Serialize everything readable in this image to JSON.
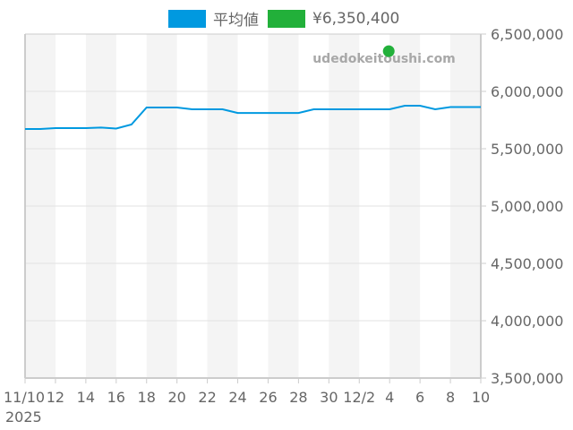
{
  "legend": [
    {
      "label": "平均値",
      "color": "#0099e0"
    },
    {
      "label": "¥6,350,400",
      "color": "#22b03a"
    }
  ],
  "watermark": "udedokeitoushi.com",
  "chart_data": {
    "type": "line",
    "title": "",
    "xlabel": "",
    "ylabel": "",
    "ylim": [
      3500000,
      6500000
    ],
    "y_ticks": [
      "6,500,000",
      "6,000,000",
      "5,500,000",
      "5,000,000",
      "4,500,000",
      "4,000,000",
      "3,500,000"
    ],
    "x_ticks": [
      "11/10",
      "12",
      "14",
      "16",
      "18",
      "20",
      "22",
      "24",
      "26",
      "28",
      "30",
      "12/2",
      "4",
      "6",
      "8",
      "10"
    ],
    "x_sub_label": "2025",
    "grid": true,
    "legend_position": "top",
    "series": [
      {
        "name": "平均値",
        "color": "#0099e0",
        "x": [
          "2025-11-10",
          "2025-11-11",
          "2025-11-12",
          "2025-11-14",
          "2025-11-15",
          "2025-11-16",
          "2025-11-17",
          "2025-11-18",
          "2025-11-20",
          "2025-11-21",
          "2025-11-23",
          "2025-11-24",
          "2025-11-28",
          "2025-11-29",
          "2025-12-04",
          "2025-12-05",
          "2025-12-06",
          "2025-12-07",
          "2025-12-08",
          "2025-12-10"
        ],
        "values": [
          5672000,
          5672000,
          5680000,
          5680000,
          5684000,
          5676000,
          5711000,
          5859000,
          5859000,
          5844000,
          5844000,
          5812000,
          5812000,
          5844000,
          5844000,
          5875000,
          5875000,
          5844000,
          5863000,
          5863000
        ]
      },
      {
        "name": "¥6,350,400",
        "color": "#22b03a",
        "type": "scatter",
        "x": [
          "2025-12-04"
        ],
        "values": [
          6350400
        ]
      }
    ]
  }
}
